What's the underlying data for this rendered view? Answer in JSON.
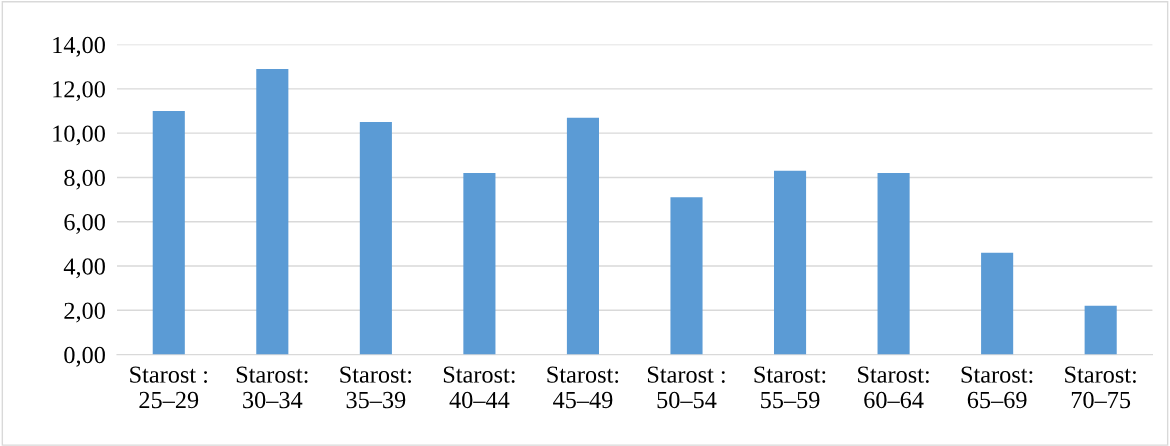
{
  "chart_data": {
    "type": "bar",
    "categories": [
      "Starost :\n25–29",
      "Starost:\n30–34",
      "Starost:\n35–39",
      "Starost:\n40–44",
      "Starost:\n45–49",
      "Starost :\n50–54",
      "Starost:\n55–59",
      "Starost:\n60–64",
      "Starost:\n65–69",
      "Starost:\n70–75"
    ],
    "values": [
      11.0,
      12.9,
      10.5,
      8.2,
      10.7,
      7.1,
      8.3,
      8.2,
      4.6,
      2.2
    ],
    "color": "#5b9bd5",
    "ylim": [
      0,
      14
    ],
    "yticks": [
      {
        "value": 0,
        "label": "0,00"
      },
      {
        "value": 2,
        "label": "2,00"
      },
      {
        "value": 4,
        "label": "4,00"
      },
      {
        "value": 6,
        "label": "6,00"
      },
      {
        "value": 8,
        "label": "8,00"
      },
      {
        "value": 10,
        "label": "10,00"
      },
      {
        "value": 12,
        "label": "12,00"
      },
      {
        "value": 14,
        "label": "14,00"
      }
    ],
    "grid": "y"
  }
}
